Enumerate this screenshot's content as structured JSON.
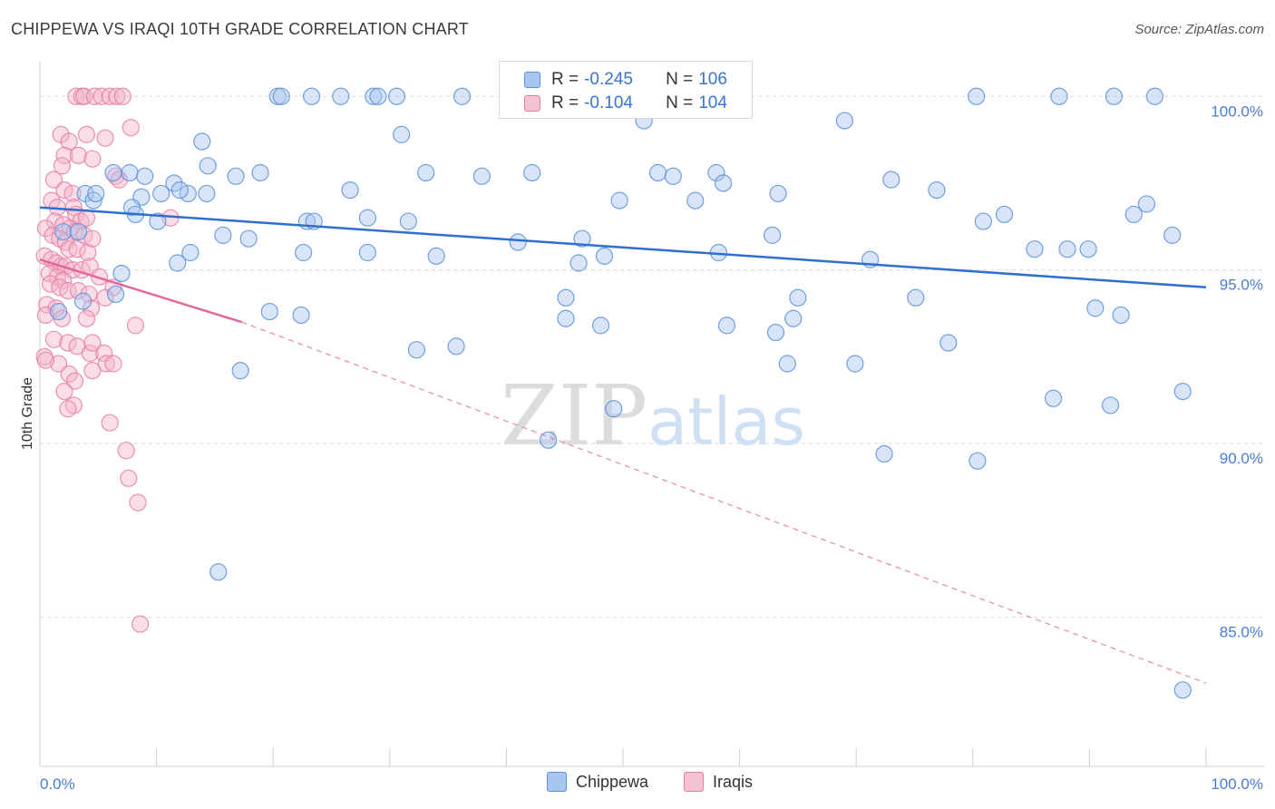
{
  "title": "CHIPPEWA VS IRAQI 10TH GRADE CORRELATION CHART",
  "source": "Source: ZipAtlas.com",
  "colors": {
    "chippewa_fill": "#a9c6f0",
    "chippewa_stroke": "#5b8fd8",
    "chippewa_line": "#2f6fd0",
    "iraqis_fill": "#f5b3c9",
    "iraqis_stroke": "#e57fa3",
    "iraqis_line": "#e0689a",
    "tick_text": "#4a7ccf"
  },
  "legend_top": {
    "rows": [
      {
        "r_label": "R = ",
        "r_value": "-0.245",
        "n_label": "N = ",
        "n_value": "106"
      },
      {
        "r_label": "R = ",
        "r_value": "-0.104",
        "n_label": "N = ",
        "n_value": "104"
      }
    ]
  },
  "legend_bottom": {
    "items": [
      "Chippewa",
      "Iraqis"
    ]
  },
  "chart_data": {
    "type": "scatter",
    "xlabel": "",
    "ylabel": "10th Grade",
    "xlim": [
      0,
      100
    ],
    "ylim": [
      80.7,
      101.0
    ],
    "x_tick_labels": [
      "0.0%",
      "100.0%"
    ],
    "y_ticks": [
      85.0,
      90.0,
      95.0,
      100.0
    ],
    "y_tick_labels": [
      "85.0%",
      "90.0%",
      "95.0%",
      "100.0%"
    ],
    "watermark": "ZIPatlas",
    "series": [
      {
        "name": "Chippewa",
        "r": -0.245,
        "n": 106,
        "trend": {
          "x": [
            0,
            100
          ],
          "y": [
            96.8,
            94.5
          ],
          "dashed_extension": false
        },
        "points": [
          [
            20.4,
            100
          ],
          [
            20.7,
            100
          ],
          [
            23.3,
            100
          ],
          [
            25.8,
            100
          ],
          [
            28.6,
            100
          ],
          [
            29.0,
            100
          ],
          [
            30.6,
            100
          ],
          [
            36.2,
            100
          ],
          [
            80.3,
            100
          ],
          [
            87.4,
            100
          ],
          [
            92.1,
            100
          ],
          [
            95.6,
            100
          ],
          [
            51.8,
            99.3
          ],
          [
            69.0,
            99.3
          ],
          [
            31.0,
            98.9
          ],
          [
            13.9,
            98.7
          ],
          [
            14.4,
            98.0
          ],
          [
            6.3,
            97.8
          ],
          [
            7.7,
            97.8
          ],
          [
            9.0,
            97.7
          ],
          [
            11.5,
            97.5
          ],
          [
            12.7,
            97.2
          ],
          [
            16.8,
            97.7
          ],
          [
            18.9,
            97.8
          ],
          [
            33.1,
            97.8
          ],
          [
            37.9,
            97.7
          ],
          [
            42.2,
            97.8
          ],
          [
            53.0,
            97.8
          ],
          [
            54.3,
            97.7
          ],
          [
            58.0,
            97.8
          ],
          [
            58.6,
            97.5
          ],
          [
            73.0,
            97.6
          ],
          [
            3.9,
            97.2
          ],
          [
            4.6,
            97.0
          ],
          [
            4.8,
            97.2
          ],
          [
            8.7,
            97.1
          ],
          [
            10.4,
            97.2
          ],
          [
            12.0,
            97.3
          ],
          [
            14.3,
            97.2
          ],
          [
            26.6,
            97.3
          ],
          [
            49.7,
            97.0
          ],
          [
            56.2,
            97.0
          ],
          [
            63.3,
            97.2
          ],
          [
            76.9,
            97.3
          ],
          [
            94.9,
            96.9
          ],
          [
            7.9,
            96.8
          ],
          [
            8.2,
            96.6
          ],
          [
            10.1,
            96.4
          ],
          [
            22.9,
            96.4
          ],
          [
            23.5,
            96.4
          ],
          [
            28.1,
            96.5
          ],
          [
            31.6,
            96.4
          ],
          [
            80.9,
            96.4
          ],
          [
            82.7,
            96.6
          ],
          [
            2.0,
            96.1
          ],
          [
            3.3,
            96.1
          ],
          [
            15.7,
            96.0
          ],
          [
            17.9,
            95.9
          ],
          [
            41.0,
            95.8
          ],
          [
            46.5,
            95.9
          ],
          [
            58.2,
            95.5
          ],
          [
            62.8,
            96.0
          ],
          [
            88.1,
            95.6
          ],
          [
            93.8,
            96.6
          ],
          [
            97.1,
            96.0
          ],
          [
            11.8,
            95.2
          ],
          [
            12.9,
            95.5
          ],
          [
            22.6,
            95.5
          ],
          [
            28.1,
            95.5
          ],
          [
            34.0,
            95.4
          ],
          [
            46.2,
            95.2
          ],
          [
            48.4,
            95.4
          ],
          [
            71.2,
            95.3
          ],
          [
            85.3,
            95.6
          ],
          [
            89.9,
            95.6
          ],
          [
            7.0,
            94.9
          ],
          [
            6.5,
            94.3
          ],
          [
            3.7,
            94.1
          ],
          [
            1.6,
            93.8
          ],
          [
            19.7,
            93.8
          ],
          [
            22.4,
            93.7
          ],
          [
            45.1,
            94.2
          ],
          [
            45.1,
            93.6
          ],
          [
            58.9,
            93.4
          ],
          [
            65.0,
            94.2
          ],
          [
            64.6,
            93.6
          ],
          [
            75.1,
            94.2
          ],
          [
            90.5,
            93.9
          ],
          [
            92.7,
            93.7
          ],
          [
            48.1,
            93.4
          ],
          [
            35.7,
            92.8
          ],
          [
            32.3,
            92.7
          ],
          [
            63.1,
            93.2
          ],
          [
            64.1,
            92.3
          ],
          [
            69.9,
            92.3
          ],
          [
            77.9,
            92.9
          ],
          [
            86.9,
            91.3
          ],
          [
            98.0,
            91.5
          ],
          [
            17.2,
            92.1
          ],
          [
            49.2,
            91.0
          ],
          [
            91.8,
            91.1
          ],
          [
            72.4,
            89.7
          ],
          [
            80.4,
            89.5
          ],
          [
            43.6,
            90.1
          ],
          [
            15.3,
            86.3
          ],
          [
            98.0,
            82.9
          ]
        ]
      },
      {
        "name": "Iraqis",
        "r": -0.104,
        "n": 104,
        "trend": {
          "x": [
            0,
            17.3
          ],
          "y": [
            95.3,
            93.5
          ],
          "dashed_extension": true,
          "dashed_to": [
            100,
            83.1
          ]
        },
        "points": [
          [
            3.1,
            100
          ],
          [
            3.6,
            100
          ],
          [
            3.8,
            100
          ],
          [
            4.7,
            100
          ],
          [
            5.3,
            100
          ],
          [
            6.0,
            100
          ],
          [
            6.6,
            100
          ],
          [
            7.1,
            100
          ],
          [
            1.8,
            98.9
          ],
          [
            2.5,
            98.7
          ],
          [
            4.0,
            98.9
          ],
          [
            5.6,
            98.8
          ],
          [
            7.8,
            99.1
          ],
          [
            2.1,
            98.3
          ],
          [
            3.3,
            98.3
          ],
          [
            4.5,
            98.2
          ],
          [
            1.9,
            98.0
          ],
          [
            6.5,
            97.7
          ],
          [
            6.8,
            97.6
          ],
          [
            1.2,
            97.6
          ],
          [
            2.1,
            97.3
          ],
          [
            2.8,
            97.2
          ],
          [
            1.0,
            97.0
          ],
          [
            1.5,
            96.8
          ],
          [
            2.9,
            96.8
          ],
          [
            3.1,
            96.6
          ],
          [
            3.5,
            96.4
          ],
          [
            4.0,
            96.5
          ],
          [
            1.3,
            96.4
          ],
          [
            2.0,
            96.3
          ],
          [
            2.6,
            96.2
          ],
          [
            3.0,
            96.1
          ],
          [
            3.8,
            96.0
          ],
          [
            11.2,
            96.5
          ],
          [
            0.5,
            96.2
          ],
          [
            1.1,
            96.0
          ],
          [
            1.7,
            95.9
          ],
          [
            2.2,
            95.8
          ],
          [
            2.5,
            95.6
          ],
          [
            3.2,
            95.6
          ],
          [
            4.1,
            95.5
          ],
          [
            4.5,
            95.9
          ],
          [
            0.4,
            95.4
          ],
          [
            1.0,
            95.3
          ],
          [
            1.4,
            95.2
          ],
          [
            1.8,
            95.1
          ],
          [
            2.2,
            95.1
          ],
          [
            2.8,
            95.0
          ],
          [
            3.6,
            95.0
          ],
          [
            4.3,
            95.1
          ],
          [
            5.1,
            94.8
          ],
          [
            0.8,
            94.9
          ],
          [
            1.5,
            94.8
          ],
          [
            2.0,
            94.7
          ],
          [
            0.9,
            94.6
          ],
          [
            1.7,
            94.5
          ],
          [
            2.4,
            94.4
          ],
          [
            3.3,
            94.4
          ],
          [
            4.2,
            94.3
          ],
          [
            6.3,
            94.5
          ],
          [
            0.6,
            94.0
          ],
          [
            1.4,
            93.9
          ],
          [
            4.4,
            93.9
          ],
          [
            5.6,
            94.2
          ],
          [
            0.5,
            93.7
          ],
          [
            1.9,
            93.6
          ],
          [
            4.0,
            93.6
          ],
          [
            8.2,
            93.4
          ],
          [
            1.2,
            93.0
          ],
          [
            2.4,
            92.9
          ],
          [
            3.2,
            92.8
          ],
          [
            4.3,
            92.6
          ],
          [
            4.5,
            92.9
          ],
          [
            5.5,
            92.6
          ],
          [
            0.4,
            92.5
          ],
          [
            1.6,
            92.3
          ],
          [
            5.7,
            92.3
          ],
          [
            6.3,
            92.3
          ],
          [
            2.5,
            92.0
          ],
          [
            4.5,
            92.1
          ],
          [
            0.5,
            92.4
          ],
          [
            3.0,
            91.8
          ],
          [
            2.1,
            91.5
          ],
          [
            2.9,
            91.1
          ],
          [
            2.4,
            91.0
          ],
          [
            6.0,
            90.6
          ],
          [
            7.4,
            89.8
          ],
          [
            7.6,
            89.0
          ],
          [
            8.4,
            88.3
          ],
          [
            8.6,
            84.8
          ]
        ]
      }
    ]
  }
}
